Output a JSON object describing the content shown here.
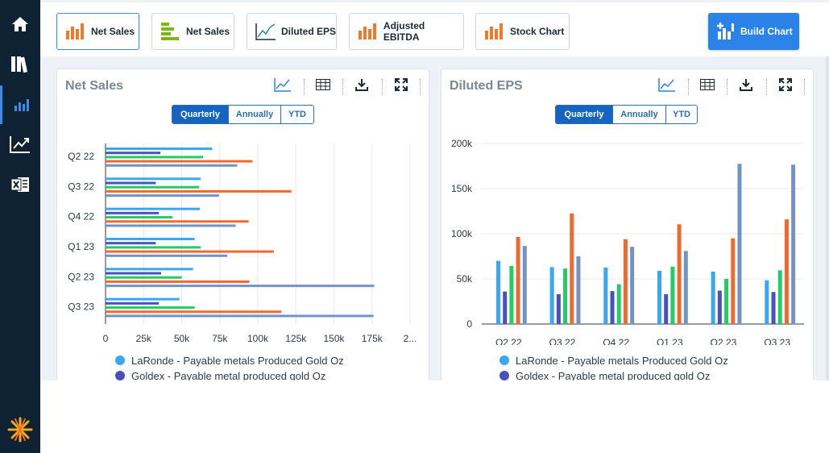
{
  "toolbar": {
    "buttons": [
      {
        "label": "Net Sales",
        "icon": "bar-chart-orange-icon"
      },
      {
        "label": "Net Sales",
        "icon": "horizontal-bar-chart-green-icon"
      },
      {
        "label": "Diluted EPS",
        "icon": "line-chart-icon"
      },
      {
        "label": "Adjusted EBITDA",
        "icon": "bar-chart-orange-icon"
      },
      {
        "label": "Stock Chart",
        "icon": "bar-chart-orange-icon"
      }
    ],
    "build_label": "Build Chart"
  },
  "sidebar": {
    "items": [
      {
        "icon": "home-icon"
      },
      {
        "icon": "library-icon"
      },
      {
        "icon": "bar-chart-icon",
        "active": true
      },
      {
        "icon": "trending-chart-icon"
      },
      {
        "icon": "excel-export-icon"
      }
    ],
    "logo": "brand-logo-icon"
  },
  "colors": {
    "series": [
      "#39a8f0",
      "#4b4fbf",
      "#22cc66",
      "#f06a30",
      "#7393c6"
    ],
    "accent": "#2b82e8",
    "sidebar": "#0f2233"
  },
  "panels": [
    {
      "title": "Net Sales",
      "toggle": [
        "Quarterly",
        "Annually",
        "YTD"
      ],
      "toggle_active": "Quarterly",
      "legend": [
        "LaRonde - Payable metals Produced Gold Oz",
        "Goldex - Payable metal produced gold Oz"
      ]
    },
    {
      "title": "Diluted EPS",
      "toggle": [
        "Quarterly",
        "Annually",
        "YTD"
      ],
      "toggle_active": "Quarterly",
      "legend": [
        "LaRonde - Payable metals Produced Gold Oz",
        "Goldex - Payable metal produced gold Oz"
      ]
    }
  ],
  "chart_data": [
    {
      "type": "bar",
      "orientation": "horizontal",
      "categories": [
        "Q2 22",
        "Q3 22",
        "Q4 22",
        "Q1 23",
        "Q2 23",
        "Q3 23"
      ],
      "series": [
        {
          "name": "LaRonde - Payable metals Produced Gold Oz",
          "values": [
            70000,
            62500,
            62000,
            58500,
            57500,
            48500
          ]
        },
        {
          "name": "Goldex - Payable metal produced gold Oz",
          "values": [
            36000,
            33000,
            35000,
            33000,
            36500,
            35000
          ]
        },
        {
          "values": [
            64000,
            61500,
            44000,
            62500,
            50000,
            58500
          ]
        },
        {
          "values": [
            96500,
            122000,
            94000,
            110500,
            94500,
            115500
          ]
        },
        {
          "values": [
            86500,
            74500,
            85500,
            80000,
            176500,
            176000
          ]
        }
      ],
      "xtick_labels": [
        "0",
        "25k",
        "50k",
        "75k",
        "100k",
        "125k",
        "150k",
        "175k",
        "2..."
      ],
      "xlim": [
        0,
        200000
      ],
      "grid": true,
      "legend_position": "bottom"
    },
    {
      "type": "bar",
      "orientation": "vertical",
      "categories": [
        "Q2 22",
        "Q3 22",
        "Q4 22",
        "Q1 23",
        "Q2 23",
        "Q3 23"
      ],
      "series": [
        {
          "name": "LaRonde - Payable metals Produced Gold Oz",
          "values": [
            70000,
            63000,
            62500,
            59000,
            58000,
            48500
          ]
        },
        {
          "name": "Goldex - Payable metal produced gold Oz",
          "values": [
            36000,
            33000,
            36500,
            33000,
            37000,
            35500
          ]
        },
        {
          "values": [
            64500,
            61500,
            44000,
            63500,
            50000,
            59500
          ]
        },
        {
          "values": [
            96500,
            122500,
            94000,
            110500,
            95000,
            116000
          ]
        },
        {
          "values": [
            86500,
            75000,
            85500,
            81000,
            177500,
            176500
          ]
        }
      ],
      "ytick_labels": [
        "0",
        "50k",
        "100k",
        "150k",
        "200k"
      ],
      "ylim": [
        0,
        200000
      ],
      "grid": true,
      "legend_position": "bottom"
    }
  ]
}
